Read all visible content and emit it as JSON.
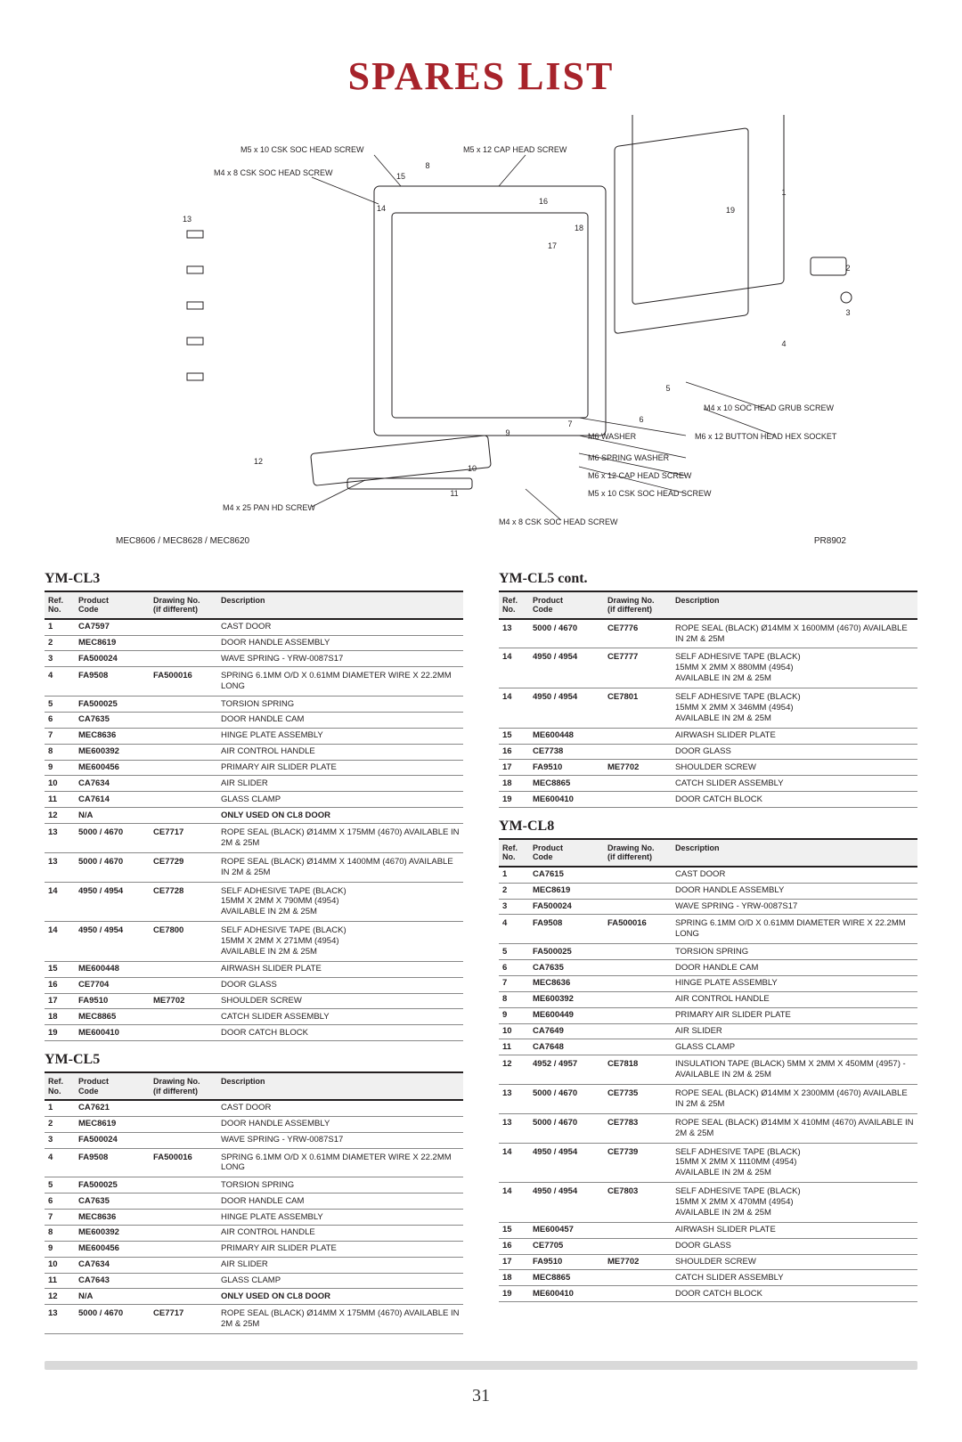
{
  "page_title": "SPARES LIST",
  "page_number": "31",
  "diagram": {
    "caption_left": "MEC8606 / MEC8628 / MEC8620",
    "caption_right": "PR8902",
    "callouts": [
      "M5 x 10 CSK SOC HEAD SCREW",
      "M5 x 12 CAP HEAD SCREW",
      "M4 x 8 CSK SOC HEAD SCREW",
      "M4 x 10 SOC HEAD GRUB SCREW",
      "M6 WASHER",
      "M6 x 12 BUTTON HEAD HEX SOCKET",
      "M6 SPRING WASHER",
      "M6 x 12 CAP HEAD SCREW",
      "M5 x 10 CSK SOC HEAD SCREW",
      "M4 x 8 CSK SOC HEAD SCREW",
      "M4 x 25 PAN HD SCREW"
    ],
    "refs": [
      "1",
      "2",
      "3",
      "4",
      "5",
      "6",
      "7",
      "8",
      "9",
      "10",
      "11",
      "12",
      "13",
      "14",
      "15",
      "16",
      "17",
      "18",
      "19"
    ]
  },
  "columns": {
    "ref": "Ref. No.",
    "code": "Product Code",
    "draw": "Drawing No. (if different)",
    "desc": "Description"
  },
  "sections": [
    {
      "heading": "YM-CL3",
      "col": "left",
      "rows": [
        {
          "ref": "1",
          "code": "CA7597",
          "draw": "",
          "desc": "CAST DOOR"
        },
        {
          "ref": "2",
          "code": "MEC8619",
          "draw": "",
          "desc": "DOOR HANDLE ASSEMBLY"
        },
        {
          "ref": "3",
          "code": "FA500024",
          "draw": "",
          "desc": "WAVE SPRING - YRW-0087S17"
        },
        {
          "ref": "4",
          "code": "FA9508",
          "draw": "FA500016",
          "desc": "SPRING 6.1MM O/D X 0.61MM DIAMETER WIRE X 22.2MM LONG",
          "ml": true
        },
        {
          "ref": "5",
          "code": "FA500025",
          "draw": "",
          "desc": "TORSION SPRING"
        },
        {
          "ref": "6",
          "code": "CA7635",
          "draw": "",
          "desc": "DOOR HANDLE CAM"
        },
        {
          "ref": "7",
          "code": "MEC8636",
          "draw": "",
          "desc": "HINGE PLATE ASSEMBLY"
        },
        {
          "ref": "8",
          "code": "ME600392",
          "draw": "",
          "desc": "AIR CONTROL HANDLE"
        },
        {
          "ref": "9",
          "code": "ME600456",
          "draw": "",
          "desc": "PRIMARY AIR SLIDER PLATE"
        },
        {
          "ref": "10",
          "code": "CA7634",
          "draw": "",
          "desc": "AIR SLIDER"
        },
        {
          "ref": "11",
          "code": "CA7614",
          "draw": "",
          "desc": "GLASS CLAMP"
        },
        {
          "ref": "12",
          "code": "N/A",
          "draw": "",
          "desc": "ONLY USED ON CL8 DOOR",
          "bold": true
        },
        {
          "ref": "13",
          "code": "5000 / 4670",
          "draw": "CE7717",
          "desc": "ROPE SEAL (BLACK) Ø14MM X 175MM (4670) AVAILABLE IN 2M & 25M",
          "ml": true
        },
        {
          "ref": "13",
          "code": "5000 / 4670",
          "draw": "CE7729",
          "desc": "ROPE SEAL (BLACK) Ø14MM X 1400MM (4670) AVAILABLE IN 2M & 25M",
          "ml": true
        },
        {
          "ref": "14",
          "code": "4950 / 4954",
          "draw": "CE7728",
          "desc": "SELF ADHESIVE TAPE (BLACK)\n15MM X 2MM X 790MM (4954)\nAVAILABLE IN 2M & 25M",
          "ml": true
        },
        {
          "ref": "14",
          "code": "4950 / 4954",
          "draw": "CE7800",
          "desc": "SELF ADHESIVE TAPE (BLACK)\n15MM X 2MM X 271MM (4954)\nAVAILABLE IN 2M & 25M",
          "ml": true
        },
        {
          "ref": "15",
          "code": "ME600448",
          "draw": "",
          "desc": "AIRWASH SLIDER PLATE"
        },
        {
          "ref": "16",
          "code": "CE7704",
          "draw": "",
          "desc": "DOOR GLASS"
        },
        {
          "ref": "17",
          "code": "FA9510",
          "draw": "ME7702",
          "desc": "SHOULDER SCREW"
        },
        {
          "ref": "18",
          "code": "MEC8865",
          "draw": "",
          "desc": "CATCH SLIDER ASSEMBLY"
        },
        {
          "ref": "19",
          "code": "ME600410",
          "draw": "",
          "desc": "DOOR CATCH BLOCK"
        }
      ]
    },
    {
      "heading": "YM-CL5",
      "col": "left",
      "rows": [
        {
          "ref": "1",
          "code": "CA7621",
          "draw": "",
          "desc": "CAST DOOR"
        },
        {
          "ref": "2",
          "code": "MEC8619",
          "draw": "",
          "desc": "DOOR HANDLE ASSEMBLY"
        },
        {
          "ref": "3",
          "code": "FA500024",
          "draw": "",
          "desc": "WAVE SPRING - YRW-0087S17"
        },
        {
          "ref": "4",
          "code": "FA9508",
          "draw": "FA500016",
          "desc": "SPRING 6.1MM O/D X 0.61MM DIAMETER WIRE X 22.2MM LONG",
          "ml": true
        },
        {
          "ref": "5",
          "code": "FA500025",
          "draw": "",
          "desc": "TORSION SPRING"
        },
        {
          "ref": "6",
          "code": "CA7635",
          "draw": "",
          "desc": "DOOR HANDLE CAM"
        },
        {
          "ref": "7",
          "code": "MEC8636",
          "draw": "",
          "desc": "HINGE PLATE ASSEMBLY"
        },
        {
          "ref": "8",
          "code": "ME600392",
          "draw": "",
          "desc": "AIR CONTROL HANDLE"
        },
        {
          "ref": "9",
          "code": "ME600456",
          "draw": "",
          "desc": "PRIMARY AIR SLIDER PLATE"
        },
        {
          "ref": "10",
          "code": "CA7634",
          "draw": "",
          "desc": "AIR SLIDER"
        },
        {
          "ref": "11",
          "code": "CA7643",
          "draw": "",
          "desc": "GLASS CLAMP"
        },
        {
          "ref": "12",
          "code": "N/A",
          "draw": "",
          "desc": "ONLY USED ON CL8 DOOR",
          "bold": true
        },
        {
          "ref": "13",
          "code": "5000 / 4670",
          "draw": "CE7717",
          "desc": "ROPE SEAL (BLACK) Ø14MM X 175MM (4670) AVAILABLE IN 2M & 25M",
          "ml": true
        }
      ]
    },
    {
      "heading": "YM-CL5 cont.",
      "col": "right",
      "rows": [
        {
          "ref": "13",
          "code": "5000 / 4670",
          "draw": "CE7776",
          "desc": "ROPE SEAL (BLACK) Ø14MM X 1600MM (4670) AVAILABLE IN 2M & 25M",
          "ml": true
        },
        {
          "ref": "14",
          "code": "4950 / 4954",
          "draw": "CE7777",
          "desc": "SELF ADHESIVE TAPE (BLACK)\n15MM X 2MM X 880MM (4954)\nAVAILABLE IN 2M & 25M",
          "ml": true
        },
        {
          "ref": "14",
          "code": "4950 / 4954",
          "draw": "CE7801",
          "desc": "SELF ADHESIVE TAPE (BLACK)\n15MM X 2MM X 346MM (4954)\nAVAILABLE IN 2M & 25M",
          "ml": true
        },
        {
          "ref": "15",
          "code": "ME600448",
          "draw": "",
          "desc": "AIRWASH SLIDER PLATE"
        },
        {
          "ref": "16",
          "code": "CE7738",
          "draw": "",
          "desc": "DOOR GLASS"
        },
        {
          "ref": "17",
          "code": "FA9510",
          "draw": "ME7702",
          "desc": "SHOULDER SCREW"
        },
        {
          "ref": "18",
          "code": "MEC8865",
          "draw": "",
          "desc": "CATCH SLIDER ASSEMBLY"
        },
        {
          "ref": "19",
          "code": "ME600410",
          "draw": "",
          "desc": "DOOR CATCH BLOCK"
        }
      ]
    },
    {
      "heading": "YM-CL8",
      "col": "right",
      "rows": [
        {
          "ref": "1",
          "code": "CA7615",
          "draw": "",
          "desc": "CAST DOOR"
        },
        {
          "ref": "2",
          "code": "MEC8619",
          "draw": "",
          "desc": "DOOR HANDLE ASSEMBLY"
        },
        {
          "ref": "3",
          "code": "FA500024",
          "draw": "",
          "desc": "WAVE SPRING - YRW-0087S17"
        },
        {
          "ref": "4",
          "code": "FA9508",
          "draw": "FA500016",
          "desc": "SPRING 6.1MM O/D X 0.61MM DIAMETER WIRE X 22.2MM LONG",
          "ml": true
        },
        {
          "ref": "5",
          "code": "FA500025",
          "draw": "",
          "desc": "TORSION SPRING"
        },
        {
          "ref": "6",
          "code": "CA7635",
          "draw": "",
          "desc": "DOOR HANDLE CAM"
        },
        {
          "ref": "7",
          "code": "MEC8636",
          "draw": "",
          "desc": "HINGE PLATE ASSEMBLY"
        },
        {
          "ref": "8",
          "code": "ME600392",
          "draw": "",
          "desc": "AIR CONTROL HANDLE"
        },
        {
          "ref": "9",
          "code": "ME600449",
          "draw": "",
          "desc": "PRIMARY AIR SLIDER PLATE"
        },
        {
          "ref": "10",
          "code": "CA7649",
          "draw": "",
          "desc": "AIR SLIDER"
        },
        {
          "ref": "11",
          "code": "CA7648",
          "draw": "",
          "desc": "GLASS CLAMP"
        },
        {
          "ref": "12",
          "code": "4952 / 4957",
          "draw": "CE7818",
          "desc": "INSULATION TAPE (BLACK) 5MM X 2MM X 450MM (4957) - AVAILABLE IN 2M & 25M",
          "ml": true
        },
        {
          "ref": "13",
          "code": "5000 / 4670",
          "draw": "CE7735",
          "desc": "ROPE SEAL (BLACK) Ø14MM X 2300MM (4670) AVAILABLE IN 2M & 25M",
          "ml": true
        },
        {
          "ref": "13",
          "code": "5000 / 4670",
          "draw": "CE7783",
          "desc": "ROPE SEAL (BLACK) Ø14MM X 410MM (4670) AVAILABLE IN 2M & 25M",
          "ml": true
        },
        {
          "ref": "14",
          "code": "4950 / 4954",
          "draw": "CE7739",
          "desc": "SELF ADHESIVE TAPE (BLACK)\n15MM X 2MM X 1110MM (4954)\nAVAILABLE IN 2M & 25M",
          "ml": true
        },
        {
          "ref": "14",
          "code": "4950 / 4954",
          "draw": "CE7803",
          "desc": "SELF ADHESIVE TAPE (BLACK)\n15MM X 2MM X 470MM (4954)\nAVAILABLE IN 2M & 25M",
          "ml": true
        },
        {
          "ref": "15",
          "code": "ME600457",
          "draw": "",
          "desc": "AIRWASH SLIDER PLATE"
        },
        {
          "ref": "16",
          "code": "CE7705",
          "draw": "",
          "desc": "DOOR GLASS"
        },
        {
          "ref": "17",
          "code": "FA9510",
          "draw": "ME7702",
          "desc": "SHOULDER SCREW"
        },
        {
          "ref": "18",
          "code": "MEC8865",
          "draw": "",
          "desc": "CATCH SLIDER ASSEMBLY"
        },
        {
          "ref": "19",
          "code": "ME600410",
          "draw": "",
          "desc": "DOOR CATCH BLOCK"
        }
      ]
    }
  ]
}
